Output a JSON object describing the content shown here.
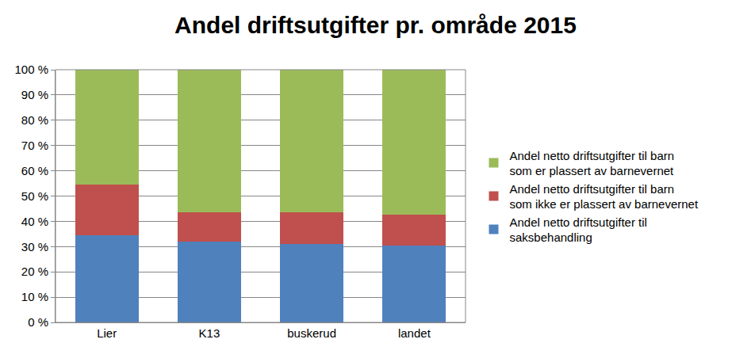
{
  "chart_data": {
    "type": "bar",
    "title": "Andel driftsutgifter pr. område 2015",
    "categories": [
      "Lier",
      "K13",
      "buskerud",
      "landet"
    ],
    "series": [
      {
        "name": "Andel netto driftsutgifter til saksbehandling",
        "color": "#4f81bd",
        "values": [
          34.5,
          32,
          31,
          30.5
        ]
      },
      {
        "name": "Andel netto driftsutgifter til barn som ikke er plassert av barnevernet",
        "color": "#c0504d",
        "values": [
          20,
          11.5,
          12.5,
          12
        ]
      },
      {
        "name": "Andel netto driftsutgifter til barn som er plassert av barnevernet",
        "color": "#9bbb59",
        "values": [
          45.5,
          56.5,
          56.5,
          57.5
        ]
      }
    ],
    "stacked": true,
    "ylim": [
      0,
      100
    ],
    "yticks": [
      {
        "value": 0,
        "label": "0 %"
      },
      {
        "value": 10,
        "label": "10 %"
      },
      {
        "value": 20,
        "label": "20 %"
      },
      {
        "value": 30,
        "label": "30 %"
      },
      {
        "value": 40,
        "label": "40 %"
      },
      {
        "value": 50,
        "label": "50 %"
      },
      {
        "value": 60,
        "label": "60 %"
      },
      {
        "value": 70,
        "label": "70 %"
      },
      {
        "value": 80,
        "label": "80 %"
      },
      {
        "value": 90,
        "label": "90 %"
      },
      {
        "value": 100,
        "label": "100 %"
      }
    ],
    "grid": true,
    "legend": "right"
  }
}
